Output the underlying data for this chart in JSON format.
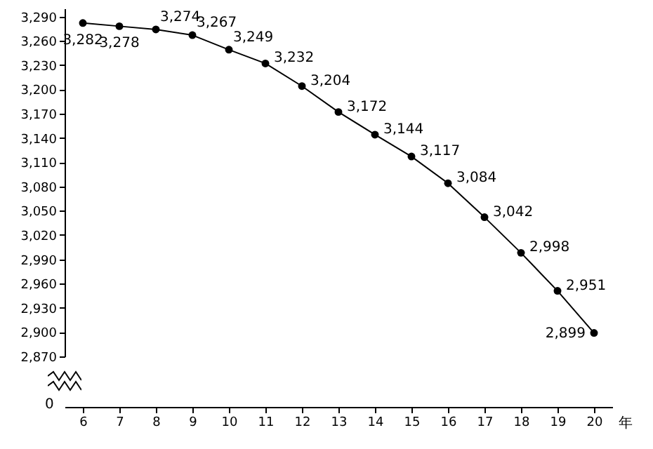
{
  "chart_data": {
    "type": "line",
    "xlabel": "年",
    "categories": [
      "6",
      "7",
      "8",
      "9",
      "10",
      "11",
      "12",
      "13",
      "14",
      "15",
      "16",
      "17",
      "18",
      "19",
      "20"
    ],
    "values": [
      3282,
      3278,
      3274,
      3267,
      3249,
      3232,
      3204,
      3172,
      3144,
      3117,
      3084,
      3042,
      2998,
      2951,
      2899
    ],
    "value_labels": [
      "3,282",
      "3,278",
      "3,274",
      "3,267",
      "3,249",
      "3,232",
      "3,204",
      "3,172",
      "3,144",
      "3,117",
      "3,084",
      "3,042",
      "2,998",
      "2,951",
      "2,899"
    ],
    "color": "#000000",
    "marker": "circle",
    "line_style": "solid",
    "grid": false,
    "ylim": [
      2870,
      3300
    ],
    "yticks": [
      {
        "value": 2870,
        "label": "2,870"
      },
      {
        "value": 2900,
        "label": "2,900"
      },
      {
        "value": 2930,
        "label": "2,930"
      },
      {
        "value": 2960,
        "label": "2,960"
      },
      {
        "value": 2990,
        "label": "2,990"
      },
      {
        "value": 3020,
        "label": "3,020"
      },
      {
        "value": 3050,
        "label": "3,050"
      },
      {
        "value": 3080,
        "label": "3,080"
      },
      {
        "value": 3110,
        "label": "3,110"
      },
      {
        "value": 3140,
        "label": "3,140"
      },
      {
        "value": 3170,
        "label": "3,170"
      },
      {
        "value": 3200,
        "label": "3,200"
      },
      {
        "value": 3230,
        "label": "3,230"
      },
      {
        "value": 3260,
        "label": "3,260"
      },
      {
        "value": 3290,
        "label": "3,290"
      }
    ],
    "annotations": [
      "0"
    ]
  }
}
